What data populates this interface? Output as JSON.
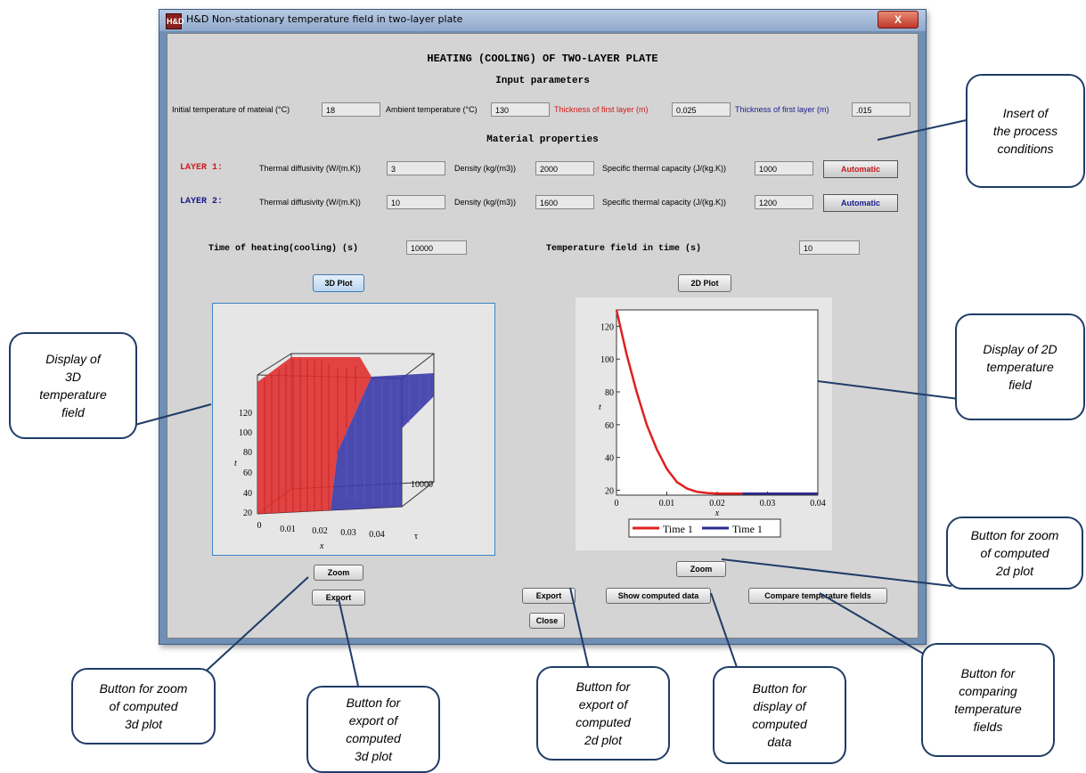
{
  "window": {
    "title": "H&D  Non-stationary temperature field in two-layer plate",
    "close": "X",
    "icon": "H&D"
  },
  "heading": "HEATING (COOLING) OF TWO-LAYER PLATE",
  "input_section": "Input parameters",
  "inputs": {
    "initial_temp_label": "Initial temperature of mateial (°C)",
    "initial_temp": "18",
    "ambient_temp_label": "Ambient temperature (°C)",
    "ambient_temp": "130",
    "thickness1_label": "Thickness of first layer (m)",
    "thickness1": "0.025",
    "thickness2_label": "Thickness of first layer  (m)",
    "thickness2": ".015"
  },
  "material_section": "Material properties",
  "layer1": {
    "name": "LAYER 1:",
    "diff_label": "Thermal diffusivity (W/(m.K))",
    "diff": "3",
    "dens_label": "Density (kg/(m3))",
    "dens": "2000",
    "cap_label": "Specific thermal capacity (J/(kg.K))",
    "cap": "1000",
    "auto": "Automatic"
  },
  "layer2": {
    "name": "LAYER 2:",
    "diff_label": "Thermal diffusivity (W/(m.K))",
    "diff": "10",
    "dens_label": "Density (kg/(m3))",
    "dens": "1600",
    "cap_label": "Specific thermal capacity (J/(kg.K))",
    "cap": "1200",
    "auto": "Automatic"
  },
  "time_heating_label": "Time of heating(cooling) (s)",
  "time_heating": "10000",
  "temp_field_time_label": "Temperature field in time (s)",
  "temp_field_time": "10",
  "buttons": {
    "plot3d": "3D Plot",
    "plot2d": "2D Plot",
    "zoom3d": "Zoom",
    "export3d": "Export",
    "zoom2d": "Zoom",
    "export2d": "Export",
    "show_data": "Show computed data",
    "compare": "Compare temperature fields",
    "close": "Close"
  },
  "plot3d": {
    "z_ticks": [
      "120",
      "100",
      "80",
      "60",
      "40",
      "20"
    ],
    "x_ticks": [
      "0",
      "0.01",
      "0.02",
      "0.03",
      "0.04"
    ],
    "tau_tick": "10000",
    "xlabel": "x",
    "taulabel": "τ",
    "zlabel": "t",
    "colors": {
      "layer1": "#e03030",
      "layer2": "#3a3aa8"
    }
  },
  "chart_data": {
    "type": "line",
    "xlabel": "x",
    "ylabel": "t",
    "xlim": [
      0,
      0.04
    ],
    "ylim": [
      17,
      130
    ],
    "x_ticks": [
      "0",
      "0.01",
      "0.02",
      "0.03",
      "0.04"
    ],
    "y_ticks": [
      "120",
      "100",
      "80",
      "60",
      "40",
      "20"
    ],
    "series": [
      {
        "name": "Time 1",
        "color": "#e02020",
        "x": [
          0,
          0.002,
          0.004,
          0.006,
          0.008,
          0.01,
          0.012,
          0.014,
          0.016,
          0.018,
          0.02,
          0.025
        ],
        "y": [
          130,
          103,
          80,
          60,
          45,
          33,
          25,
          21,
          19,
          18.3,
          18,
          18
        ]
      },
      {
        "name": "Time 1",
        "color": "#2a2a90",
        "x": [
          0.025,
          0.03,
          0.035,
          0.04
        ],
        "y": [
          18,
          18,
          18,
          18
        ]
      }
    ],
    "legend": "bottom"
  },
  "callouts": {
    "insert": "Insert of\nthe  process\nconditions",
    "display3d": "Display of\n3D\ntemperature\nfield",
    "display2d": "Display of 2D\ntemperature\nfield",
    "zoom2d": "Button for zoom\nof computed\n2d plot",
    "zoom3d": "Button for zoom\nof computed\n3d plot",
    "export3d": "Button for\nexport of\ncomputed\n3d plot",
    "export2d": "Button for\nexport of\ncomputed\n2d plot",
    "display_data": "Button for\ndisplay of\ncomputed\ndata",
    "compare": "Button for\ncomparing\ntemperature\nfields"
  }
}
